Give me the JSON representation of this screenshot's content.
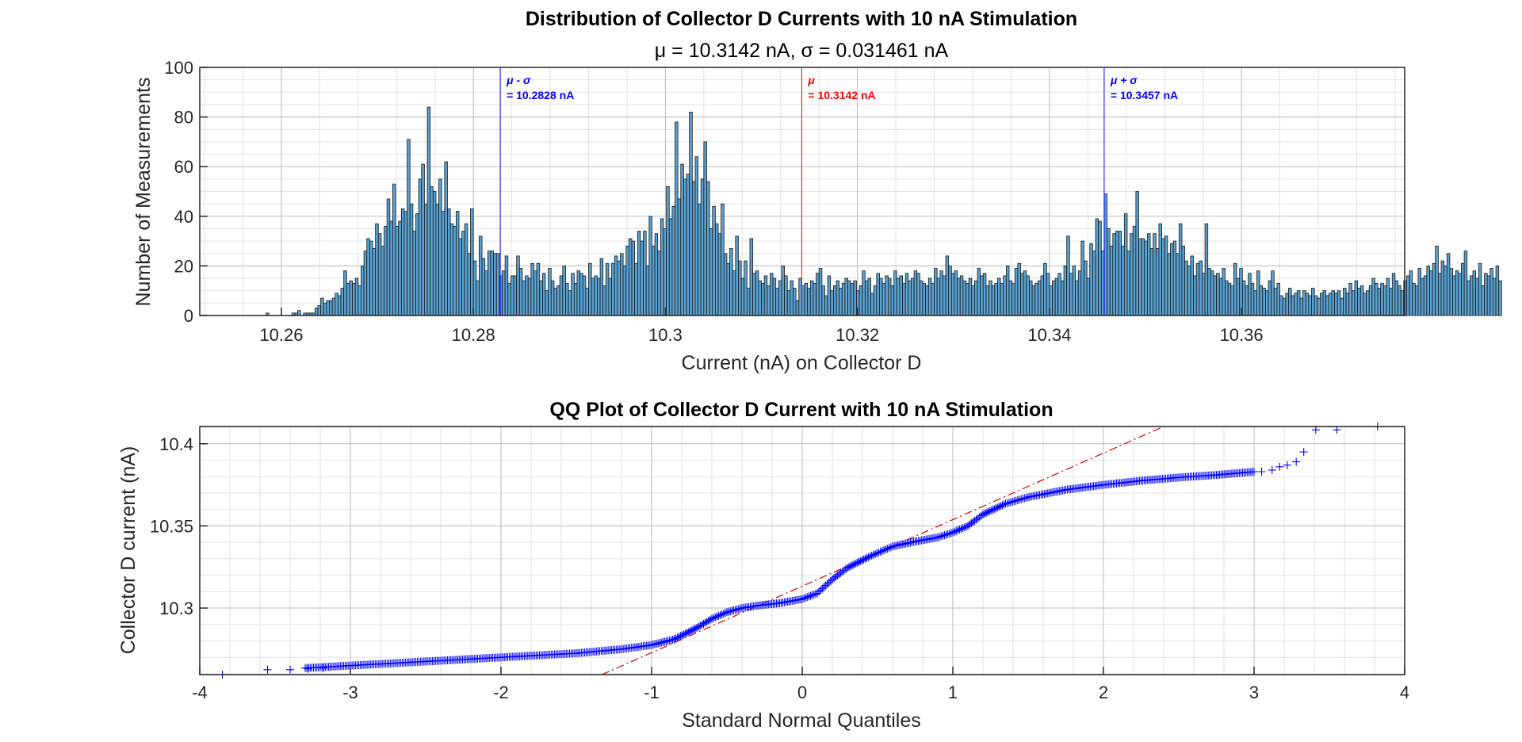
{
  "chart_data": [
    {
      "type": "bar",
      "title": "Distribution of Collector D Currents with 10 nA Stimulation",
      "subtitle": "μ = 10.3142 nA, σ = 0.031461 nA",
      "xlabel": "Current (nA) on Collector D",
      "ylabel": "Number of Measurements",
      "xlim": [
        10.2515,
        10.377
      ],
      "ylim": [
        0,
        100
      ],
      "xticks": [
        10.26,
        10.28,
        10.3,
        10.32,
        10.34,
        10.36
      ],
      "xtick_labels": [
        "10.26",
        "10.28",
        "10.3",
        "10.32",
        "10.34",
        "10.36"
      ],
      "yticks": [
        0,
        20,
        40,
        60,
        80,
        100
      ],
      "ytick_labels": [
        "0",
        "20",
        "40",
        "60",
        "80",
        "100"
      ],
      "grid": true,
      "bar_color": "#5aa0cf",
      "bin_start": 10.2515,
      "bin_width": 0.0003,
      "counts": [
        0,
        0,
        0,
        0,
        0,
        0,
        0,
        0,
        0,
        0,
        0,
        0,
        0,
        0,
        0,
        0,
        0,
        0,
        0,
        0,
        0,
        0,
        0,
        1,
        0,
        0,
        0,
        0,
        0,
        0,
        0,
        0,
        1,
        1,
        2,
        0,
        1,
        1,
        1,
        1,
        3,
        4,
        7,
        5,
        6,
        6,
        7,
        9,
        8,
        11,
        18,
        13,
        14,
        13,
        15,
        12,
        20,
        26,
        31,
        30,
        27,
        37,
        33,
        28,
        36,
        47,
        38,
        53,
        36,
        38,
        43,
        42,
        71,
        45,
        34,
        41,
        55,
        61,
        45,
        84,
        52,
        50,
        45,
        55,
        42,
        62,
        43,
        37,
        36,
        42,
        31,
        34,
        37,
        25,
        43,
        22,
        14,
        32,
        23,
        18,
        26,
        26,
        25,
        25,
        16,
        18,
        24,
        13,
        16,
        16,
        24,
        19,
        14,
        16,
        15,
        21,
        18,
        21,
        14,
        17,
        10,
        19,
        14,
        11,
        12,
        16,
        20,
        13,
        10,
        17,
        13,
        18,
        17,
        16,
        11,
        21,
        15,
        16,
        15,
        23,
        12,
        21,
        15,
        21,
        24,
        22,
        25,
        20,
        28,
        31,
        30,
        21,
        34,
        30,
        34,
        20,
        40,
        28,
        33,
        26,
        39,
        35,
        52,
        39,
        44,
        78,
        47,
        61,
        55,
        57,
        82,
        54,
        64,
        45,
        55,
        70,
        54,
        35,
        44,
        37,
        33,
        45,
        25,
        21,
        27,
        18,
        32,
        22,
        15,
        22,
        11,
        31,
        17,
        18,
        14,
        13,
        16,
        12,
        17,
        15,
        11,
        14,
        20,
        16,
        10,
        14,
        11,
        6,
        15,
        12,
        13,
        11,
        14,
        13,
        17,
        19,
        12,
        8,
        16,
        10,
        12,
        14,
        11,
        13,
        15,
        14,
        13,
        14,
        10,
        12,
        18,
        14,
        15,
        9,
        12,
        17,
        15,
        13,
        16,
        15,
        12,
        18,
        15,
        16,
        13,
        17,
        14,
        15,
        18,
        17,
        14,
        13,
        12,
        15,
        13,
        19,
        15,
        18,
        16,
        24,
        20,
        17,
        18,
        15,
        16,
        14,
        13,
        15,
        12,
        14,
        19,
        16,
        17,
        12,
        14,
        12,
        13,
        15,
        13,
        16,
        20,
        14,
        13,
        19,
        21,
        17,
        18,
        16,
        14,
        12,
        13,
        14,
        16,
        21,
        17,
        12,
        14,
        15,
        17,
        14,
        20,
        32,
        17,
        20,
        14,
        18,
        30,
        22,
        15,
        29,
        26,
        39,
        38,
        26,
        49,
        35,
        28,
        33,
        34,
        34,
        28,
        41,
        26,
        33,
        36,
        50,
        31,
        31,
        30,
        33,
        27,
        33,
        27,
        37,
        31,
        32,
        25,
        29,
        30,
        25,
        37,
        28,
        22,
        20,
        24,
        16,
        21,
        22,
        17,
        37,
        19,
        18,
        16,
        17,
        15,
        19,
        14,
        13,
        12,
        21,
        15,
        19,
        14,
        12,
        17,
        13,
        10,
        18,
        12,
        11,
        10,
        14,
        18,
        11,
        13,
        8,
        7,
        9,
        11,
        8,
        9,
        10,
        7,
        10,
        9,
        8,
        11,
        8,
        7,
        9,
        10,
        8,
        9,
        10,
        9,
        10,
        7,
        11,
        9,
        13,
        10,
        14,
        11,
        12,
        9,
        10,
        12,
        15,
        13,
        11,
        13,
        12,
        15,
        11,
        17,
        14,
        12,
        10,
        14,
        16,
        18,
        13,
        12,
        19,
        15,
        16,
        20,
        18,
        21,
        28,
        17,
        22,
        20,
        25,
        19,
        16,
        18,
        17,
        21,
        26,
        14,
        16,
        18,
        15,
        21,
        12,
        17,
        16,
        19,
        15,
        20,
        14
      ],
      "annotations": [
        {
          "line_x": 10.2828,
          "color": "#0000ff",
          "label_top": "μ - σ",
          "label_bottom": "= 10.2828 nA"
        },
        {
          "line_x": 10.3142,
          "color": "#ff0000",
          "label_top": "μ",
          "label_bottom": "= 10.3142 nA"
        },
        {
          "line_x": 10.3457,
          "color": "#0000ff",
          "label_top": "μ + σ",
          "label_bottom": "= 10.3457 nA"
        }
      ]
    },
    {
      "type": "scatter",
      "title": "QQ Plot of Collector D Current with 10 nA Stimulation",
      "xlabel": "Standard Normal Quantiles",
      "ylabel": "Collector D current (nA)",
      "xlim": [
        -4,
        4
      ],
      "ylim": [
        10.2595,
        10.4105
      ],
      "xticks": [
        -4,
        -3,
        -2,
        -1,
        0,
        1,
        2,
        3,
        4
      ],
      "xtick_labels": [
        "-4",
        "-3",
        "-2",
        "-1",
        "0",
        "1",
        "2",
        "3",
        "4"
      ],
      "yticks": [
        10.3,
        10.35,
        10.4
      ],
      "ytick_labels": [
        "10.3",
        "10.35",
        "10.4"
      ],
      "grid": true,
      "marker": "+",
      "marker_color": "#0000ff",
      "reference_line": {
        "color": "#cc0000",
        "style": "dash-dot",
        "points": [
          [
            -1.33,
            10.2595
          ],
          [
            2.4,
            10.4105
          ]
        ]
      },
      "quantile_curve": {
        "x": [
          -3.3,
          -3.0,
          -2.5,
          -2.0,
          -1.5,
          -1.2,
          -1.0,
          -0.85,
          -0.7,
          -0.6,
          -0.5,
          -0.4,
          -0.3,
          -0.15,
          0.0,
          0.1,
          0.2,
          0.3,
          0.45,
          0.6,
          0.75,
          0.9,
          1.0,
          1.1,
          1.2,
          1.35,
          1.5,
          1.75,
          2.0,
          2.25,
          2.5,
          2.75,
          3.0
        ],
        "y": [
          10.2635,
          10.265,
          10.2675,
          10.27,
          10.2725,
          10.275,
          10.2775,
          10.281,
          10.288,
          10.2935,
          10.2975,
          10.3,
          10.3015,
          10.303,
          10.3055,
          10.309,
          10.3175,
          10.3245,
          10.3315,
          10.3375,
          10.3405,
          10.343,
          10.346,
          10.35,
          10.357,
          10.3635,
          10.3675,
          10.372,
          10.375,
          10.3775,
          10.3795,
          10.381,
          10.383
        ]
      },
      "tail_points": [
        [
          -3.85,
          10.2595
        ],
        [
          -3.55,
          10.2625
        ],
        [
          -3.4,
          10.2625
        ],
        [
          -3.28,
          10.263
        ],
        [
          -3.18,
          10.2635
        ],
        [
          3.05,
          10.383
        ],
        [
          3.12,
          10.384
        ],
        [
          3.17,
          10.386
        ],
        [
          3.22,
          10.387
        ],
        [
          3.28,
          10.389
        ],
        [
          3.33,
          10.395
        ],
        [
          3.41,
          10.4085
        ],
        [
          3.55,
          10.4085
        ],
        [
          3.82,
          10.4105
        ]
      ]
    }
  ]
}
